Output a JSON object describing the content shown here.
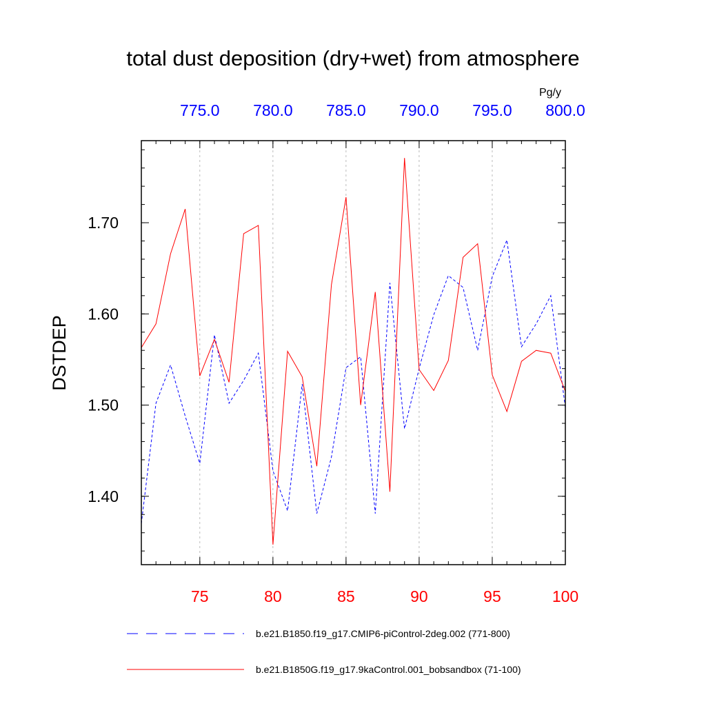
{
  "chart_data": {
    "type": "line",
    "title": "total dust deposition (dry+wet) from atmosphere",
    "ylabel": "DSTDEP",
    "units_label": "Pg/y",
    "ylim": [
      1.325,
      1.79
    ],
    "y_ticks": [
      1.4,
      1.5,
      1.6,
      1.7
    ],
    "y_tick_labels": [
      "1.40",
      "1.50",
      "1.60",
      "1.70"
    ],
    "bottom_axis": {
      "range": [
        71,
        100
      ],
      "ticks": [
        75,
        80,
        85,
        90,
        95,
        100
      ],
      "tick_labels": [
        "75",
        "80",
        "85",
        "90",
        "95",
        "100"
      ],
      "color": "#ff0000"
    },
    "top_axis": {
      "range": [
        771,
        800
      ],
      "ticks": [
        775,
        780,
        785,
        790,
        795,
        800
      ],
      "tick_labels": [
        "775.0",
        "780.0",
        "785.0",
        "790.0",
        "795.0",
        "800.0"
      ],
      "color": "#0000ff"
    },
    "grid": "vertical dashed at major ticks",
    "legend_position": "bottom",
    "series": [
      {
        "name": "b.e21.B1850.f19_g17.CMIP6-piControl-2deg.002 (771-800)",
        "color": "#0000ff",
        "style": "dashed",
        "axis": "top",
        "x": [
          771,
          772,
          773,
          774,
          775,
          776,
          777,
          778,
          779,
          780,
          781,
          782,
          783,
          784,
          785,
          786,
          787,
          788,
          789,
          790,
          791,
          792,
          793,
          794,
          795,
          796,
          797,
          798,
          799,
          800
        ],
        "values": [
          1.37,
          1.502,
          1.544,
          1.488,
          1.436,
          1.577,
          1.502,
          1.527,
          1.557,
          1.428,
          1.384,
          1.523,
          1.381,
          1.443,
          1.541,
          1.553,
          1.381,
          1.634,
          1.474,
          1.54,
          1.599,
          1.642,
          1.629,
          1.56,
          1.641,
          1.681,
          1.564,
          1.589,
          1.62,
          1.497
        ]
      },
      {
        "name": "b.e21.B1850G.f19_g17.9kaControl.001_bobsandbox (71-100)",
        "color": "#ff0000",
        "style": "solid",
        "axis": "bottom",
        "x": [
          71,
          72,
          73,
          74,
          75,
          76,
          77,
          78,
          79,
          80,
          81,
          82,
          83,
          84,
          85,
          86,
          87,
          88,
          89,
          90,
          91,
          92,
          93,
          94,
          95,
          96,
          97,
          98,
          99,
          100
        ],
        "values": [
          1.563,
          1.589,
          1.666,
          1.715,
          1.532,
          1.572,
          1.525,
          1.688,
          1.697,
          1.347,
          1.559,
          1.531,
          1.433,
          1.632,
          1.728,
          1.5,
          1.624,
          1.405,
          1.771,
          1.539,
          1.516,
          1.549,
          1.662,
          1.677,
          1.533,
          1.493,
          1.548,
          1.56,
          1.557,
          1.515
        ]
      }
    ]
  }
}
